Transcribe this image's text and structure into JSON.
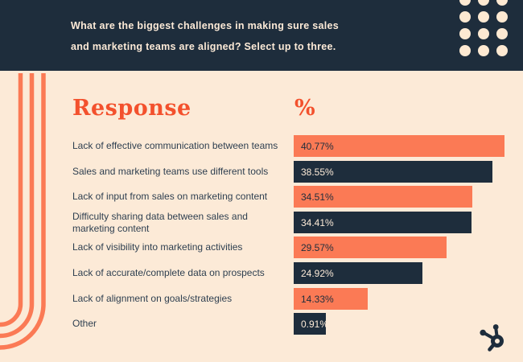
{
  "header": {
    "question_line1": "What are the biggest challenges in making sure sales",
    "question_line2": "and marketing teams are aligned? Select up to three."
  },
  "table": {
    "response_header": "Response",
    "percent_header": "%"
  },
  "chart_data": {
    "type": "bar",
    "orientation": "horizontal",
    "title": "What are the biggest challenges in making sure sales and marketing teams are aligned? Select up to three.",
    "categories": [
      "Lack of effective communication between teams",
      "Sales and marketing teams use different tools",
      "Lack of input from sales on marketing content",
      "Difficulty sharing data between sales and\nmarketing content",
      "Lack of visibility into marketing activities",
      "Lack of accurate/complete data on prospects",
      "Lack of alignment on goals/strategies",
      "Other"
    ],
    "values": [
      40.77,
      38.55,
      34.51,
      34.41,
      29.57,
      24.92,
      14.33,
      0.91
    ],
    "value_labels": [
      "40.77%",
      "38.55%",
      "34.51%",
      "34.41%",
      "29.57%",
      "24.92%",
      "14.33%",
      "0.91%"
    ],
    "xlim": [
      0,
      44
    ],
    "grid": false,
    "legend": "none",
    "bar_color_pattern": [
      "#fb7a55",
      "#1e2d3c"
    ]
  },
  "colors": {
    "header_background": "#1e2d3c",
    "page_background": "#fcead7",
    "accent_orange": "#fb7a55",
    "heading_orange": "#f3512d",
    "dark_navy": "#1e2d3c",
    "cream": "#fcead7"
  },
  "branding": {
    "logo": "hubspot-sprocket-icon"
  }
}
